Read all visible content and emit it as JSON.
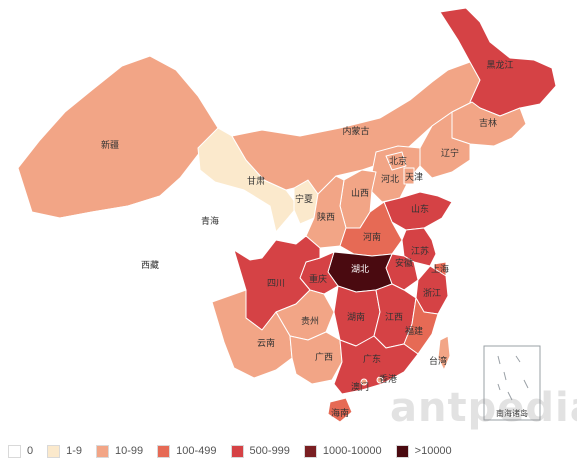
{
  "colors": {
    "level0": "#ffffff",
    "level1": "#fbe9cc",
    "level2": "#f2a586",
    "level3": "#e66a55",
    "level4": "#d54245",
    "level5": "#7a1f22",
    "level6": "#4a0a10"
  },
  "provinces": [
    {
      "key": "xinjiang",
      "label": "新疆",
      "level": "level2"
    },
    {
      "key": "xizang",
      "label": "西藏",
      "level": "level0"
    },
    {
      "key": "qinghai",
      "label": "青海",
      "level": "level0"
    },
    {
      "key": "gansu",
      "label": "甘肃",
      "level": "level1"
    },
    {
      "key": "ningxia",
      "label": "宁夏",
      "level": "level1"
    },
    {
      "key": "neimenggu",
      "label": "内蒙古",
      "level": "level2"
    },
    {
      "key": "heilongjiang",
      "label": "黑龙江",
      "level": "level4"
    },
    {
      "key": "jilin",
      "label": "吉林",
      "level": "level2"
    },
    {
      "key": "liaoning",
      "label": "辽宁",
      "level": "level2"
    },
    {
      "key": "beijing",
      "label": "北京",
      "level": "level2"
    },
    {
      "key": "tianjin",
      "label": "天津",
      "level": "level2"
    },
    {
      "key": "hebei",
      "label": "河北",
      "level": "level2"
    },
    {
      "key": "shanxi",
      "label": "山西",
      "level": "level2"
    },
    {
      "key": "shaanxi",
      "label": "陕西",
      "level": "level2"
    },
    {
      "key": "shandong",
      "label": "山东",
      "level": "level4"
    },
    {
      "key": "henan",
      "label": "河南",
      "level": "level3"
    },
    {
      "key": "jiangsu",
      "label": "江苏",
      "level": "level4"
    },
    {
      "key": "shanghai",
      "label": "上海",
      "level": "level3"
    },
    {
      "key": "anhui",
      "label": "安徽",
      "level": "level4"
    },
    {
      "key": "hubei",
      "label": "湖北",
      "level": "level6"
    },
    {
      "key": "chongqing",
      "label": "重庆",
      "level": "level4"
    },
    {
      "key": "sichuan",
      "label": "四川",
      "level": "level4"
    },
    {
      "key": "zhejiang",
      "label": "浙江",
      "level": "level4"
    },
    {
      "key": "guizhou",
      "label": "贵州",
      "level": "level2"
    },
    {
      "key": "hunan",
      "label": "湖南",
      "level": "level4"
    },
    {
      "key": "jiangxi",
      "label": "江西",
      "level": "level4"
    },
    {
      "key": "fujian",
      "label": "福建",
      "level": "level3"
    },
    {
      "key": "yunnan",
      "label": "云南",
      "level": "level2"
    },
    {
      "key": "guangxi",
      "label": "广西",
      "level": "level2"
    },
    {
      "key": "guangdong",
      "label": "广东",
      "level": "level4"
    },
    {
      "key": "taiwan",
      "label": "台湾",
      "level": "level2"
    },
    {
      "key": "hainan",
      "label": "海南",
      "level": "level3"
    },
    {
      "key": "aomen",
      "label": "澳门",
      "level": "level2"
    },
    {
      "key": "xianggang",
      "label": "香港",
      "level": "level2"
    }
  ],
  "inset_label": "南海诸岛",
  "legend": [
    {
      "label": "0",
      "level": "level0"
    },
    {
      "label": "1-9",
      "level": "level1"
    },
    {
      "label": "10-99",
      "level": "level2"
    },
    {
      "label": "100-499",
      "level": "level3"
    },
    {
      "label": "500-999",
      "level": "level4"
    },
    {
      "label": "1000-10000",
      "level": "level5"
    },
    {
      "label": ">10000",
      "level": "level6"
    }
  ],
  "watermark": "antpedia"
}
